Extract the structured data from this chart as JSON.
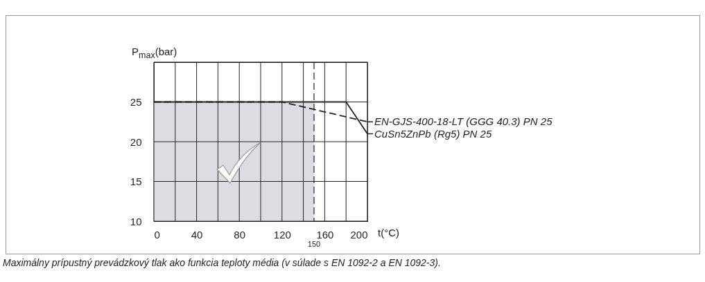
{
  "chart_data": {
    "type": "line",
    "xlabel": "t(°C)",
    "ylabel": "P$_{max}$(bar)",
    "xlim": [
      0,
      200
    ],
    "ylim": [
      10,
      30
    ],
    "xticks": [
      0,
      {
        "value": 20,
        "label": null
      },
      40,
      {
        "value": 60,
        "label": null
      },
      80,
      {
        "value": 100,
        "label": null
      },
      120,
      {
        "value": 140,
        "label": null
      },
      160,
      {
        "value": 180,
        "label": null
      },
      200
    ],
    "yticks": [
      10,
      15,
      20,
      25,
      {
        "value": 30,
        "label": null
      }
    ],
    "grid": true,
    "legend": "right",
    "marker": "none",
    "series": [
      {
        "type": "area",
        "color": "#dcdde3",
        "x": [
          0,
          150
        ],
        "values": [
          25,
          25
        ]
      },
      {
        "name": "EN-GJS-400-18-LT (GGG 40.3) PN 25",
        "color": "#222222",
        "x": [
          0,
          120,
          200
        ],
        "values": [
          25,
          25,
          22.5
        ],
        "line_style": "dashed"
      },
      {
        "name": "CuSn5ZnPb (Rg5) PN 25",
        "color": "#222222",
        "x": [
          0,
          180,
          200
        ],
        "values": [
          25,
          25,
          21
        ],
        "line_style": "solid"
      }
    ],
    "ref_lines": [
      {
        "axis": "x",
        "value": 150,
        "label": "150",
        "line_style": "dashed",
        "color": "#222222"
      }
    ],
    "annotations": [
      "Maximálny prípustný prevádzkový tlak ako funkcia teploty média (v súlade s EN 1092-2 a EN 1092-3)."
    ]
  }
}
